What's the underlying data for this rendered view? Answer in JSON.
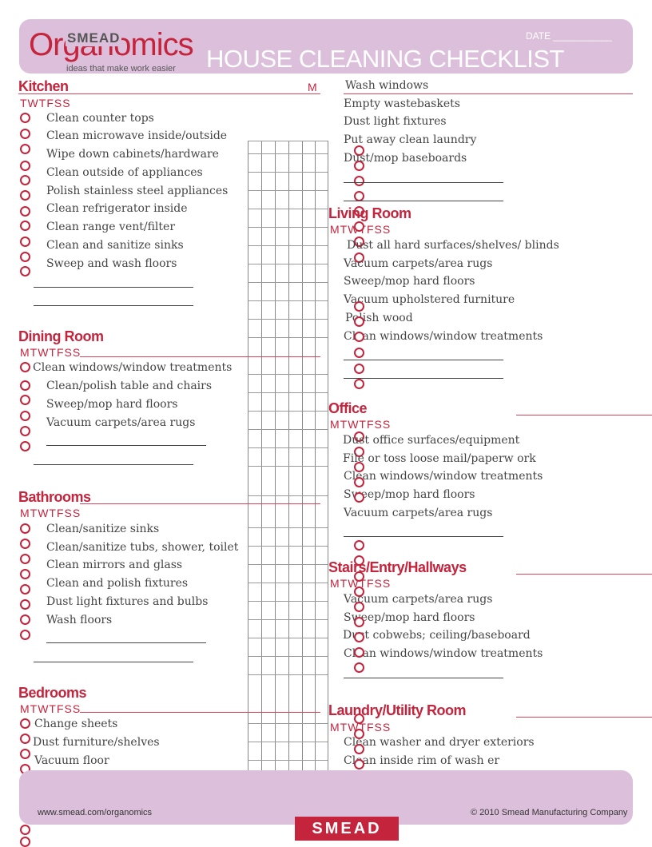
{
  "header": {
    "brand_top": "SMEAD",
    "brand_name": "Organomics",
    "tagline": "ideas that make work easier",
    "title": "HOUSE CLEANING CHECKLIST",
    "date_label": "DATE ___________"
  },
  "sections": {
    "kitchen": {
      "title": "Kitchen",
      "marker": "M",
      "days": "TWTFSS",
      "items": [
        "Clean counter tops",
        "Clean microwave inside/outside",
        "Wipe down cabinets/hardware",
        "Clean outside of appliances",
        "Polish stainless steel appliances",
        "Clean refrigerator inside",
        "Clean range vent/filter",
        "Clean and sanitize sinks",
        "Sweep and wash floors"
      ]
    },
    "dining": {
      "title": "Dining Room",
      "days": "MTWTFSS",
      "items": [
        "Clean windows/window treatments",
        "Clean/polish table and chairs",
        "Sweep/mop hard floors",
        "Vacuum carpets/area rugs"
      ]
    },
    "bathrooms": {
      "title": "Bathrooms",
      "days": "MTWTFSS",
      "items": [
        "Clean/sanitize sinks",
        "Clean/sanitize tubs, shower, toilet",
        "Clean mirrors and glass",
        "Clean and polish fixtures",
        "Dust light fixtures and bulbs",
        "Wash floors"
      ]
    },
    "bedrooms": {
      "title": "Bedrooms",
      "days": "MTWTFSS",
      "items": [
        "Change sheets",
        "Dust furniture/shelves",
        "Vacuum floor"
      ]
    },
    "general": {
      "items": [
        "Wash windows",
        "Empty wastebaskets",
        "Dust light fixtures",
        "Put away clean laundry",
        "Dust/mop baseboards"
      ]
    },
    "living": {
      "title": "Living Room",
      "days": "MTWTFSS",
      "items": [
        "Dust all hard surfaces/shelves/    blinds",
        "Vacuum carpets/area rugs",
        "Sweep/mop hard floors",
        "Vacuum upholstered furniture",
        "Polish wood",
        "Clean windows/window treatments"
      ]
    },
    "office": {
      "title": "Office",
      "days": "MTWTFSS",
      "items": [
        "Dust office surfaces/equipment",
        "File or toss loose mail/paperw   ork",
        "Clean windows/window treatments",
        "Sweep/mop hard floors",
        "Vacuum carpets/area rugs"
      ]
    },
    "stairs": {
      "title": "Stairs/Entry/Hallways",
      "days": "MTWTFSS",
      "items": [
        "Vacuum carpets/area rugs",
        "Sweep/mop hard floors",
        "Dust cobwebs; ceiling/baseboard",
        "Clean windows/window treatments"
      ]
    },
    "laundry": {
      "title": "Laundry/Utility Room",
      "days": "MTWTFSS",
      "items": [
        "Clean washer and dryer exteriors",
        "Clean inside rim of wash    er"
      ]
    }
  },
  "footer": {
    "url": "www.smead.com/organomics",
    "copyright": "© 2010 Smead Manufacturing Company",
    "logo_text": "SMEAD"
  },
  "colors": {
    "accent": "#c4243c",
    "band": "#dcc0db"
  }
}
